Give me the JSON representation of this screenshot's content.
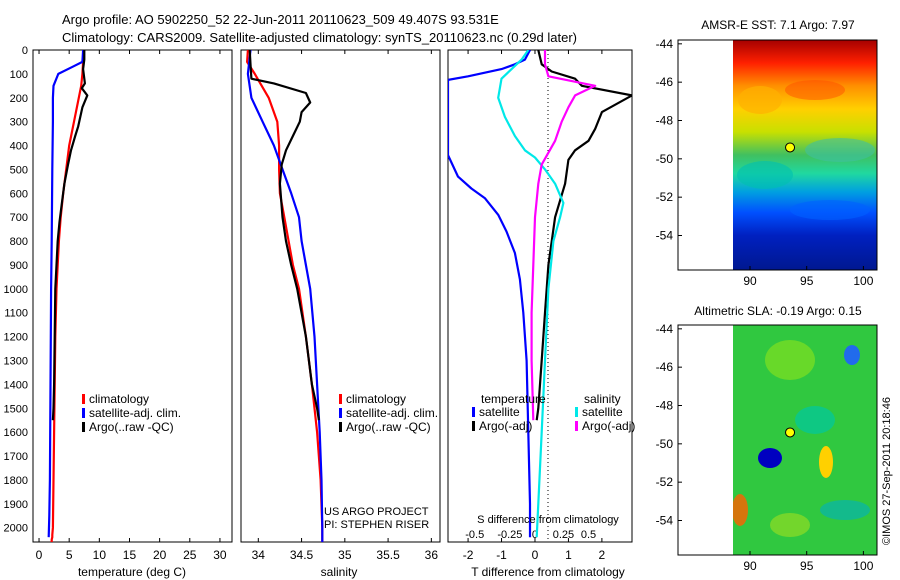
{
  "title_line1": "Argo profile: AO 5902250_52 22-Jun-2011 20110623_509 49.407S 93.531E",
  "title_line2": "Climatology: CARS2009. Satellite-adjusted climatology: synTS_20110623.nc (0.29d later)",
  "depth_ticks": [
    "0",
    "100",
    "200",
    "300",
    "400",
    "500",
    "600",
    "700",
    "800",
    "900",
    "1000",
    "1100",
    "1200",
    "1300",
    "1400",
    "1500",
    "1600",
    "1700",
    "1800",
    "1900",
    "2000"
  ],
  "depth_range": [
    0,
    2060
  ],
  "chart_data": [
    {
      "id": "temperature",
      "type": "line",
      "xlabel": "temperature (deg C)",
      "xlim": [
        -1,
        32
      ],
      "xticks": [
        {
          "v": 0,
          "l": "0"
        },
        {
          "v": 5,
          "l": "5"
        },
        {
          "v": 10,
          "l": "10"
        },
        {
          "v": 15,
          "l": "15"
        },
        {
          "v": 20,
          "l": "20"
        },
        {
          "v": 25,
          "l": "25"
        },
        {
          "v": 30,
          "l": "30"
        }
      ],
      "legend": {
        "items": [
          {
            "label": "climatology",
            "color": "#ff0000"
          },
          {
            "label": "satellite-adj. clim.",
            "color": "#0000ff"
          },
          {
            "label": "Argo(..raw -QC)",
            "color": "#000000"
          }
        ]
      },
      "series": [
        {
          "name": "climatology",
          "color": "#ff0000",
          "x": [
            7.3,
            7.3,
            7.2,
            7.0,
            5.8,
            5.0,
            4.5,
            4.0,
            3.6,
            3.3,
            3.1,
            2.9,
            2.7,
            2.6,
            2.5,
            2.4,
            2.3,
            2.2,
            2.2,
            2.1,
            2.1
          ],
          "y": [
            0,
            50,
            100,
            150,
            300,
            400,
            500,
            600,
            700,
            800,
            900,
            1000,
            1200,
            1400,
            1600,
            1800,
            2000,
            2030,
            2040,
            2050,
            2060
          ]
        },
        {
          "name": "satellite-adj. clim.",
          "color": "#0000ff",
          "x": [
            7.3,
            7.2,
            5.6,
            3.2,
            2.4,
            2.3,
            2.3,
            2.2,
            2.1,
            2.0,
            1.9,
            1.8,
            1.7,
            1.6
          ],
          "y": [
            0,
            50,
            70,
            100,
            150,
            200,
            300,
            500,
            800,
            1000,
            1400,
            1800,
            1950,
            2040
          ]
        },
        {
          "name": "Argo",
          "color": "#000000",
          "x": [
            7.5,
            7.5,
            7.3,
            7.6,
            7.1,
            8.0,
            7.2,
            6.5,
            6.0,
            5.3,
            4.8,
            4.2,
            3.8,
            3.4,
            3.1,
            2.9,
            2.7,
            2.6,
            2.5,
            2.4,
            2.3
          ],
          "y": [
            0,
            40,
            80,
            140,
            160,
            190,
            240,
            320,
            360,
            420,
            480,
            560,
            640,
            720,
            800,
            900,
            1000,
            1200,
            1400,
            1500,
            1550
          ]
        }
      ]
    },
    {
      "id": "salinity",
      "type": "line",
      "xlabel": "salinity",
      "xlim": [
        33.8,
        36.1
      ],
      "xticks": [
        {
          "v": 34,
          "l": "34"
        },
        {
          "v": 34.5,
          "l": "34.5"
        },
        {
          "v": 35,
          "l": "35"
        },
        {
          "v": 35.5,
          "l": "35.5"
        },
        {
          "v": 36,
          "l": "36"
        }
      ],
      "legend": {
        "items": [
          {
            "label": "climatology",
            "color": "#ff0000"
          },
          {
            "label": "satellite-adj. clim.",
            "color": "#0000ff"
          },
          {
            "label": "Argo(..raw -QC)",
            "color": "#000000"
          }
        ]
      },
      "annotation": [
        "US ARGO PROJECT",
        "PI: STEPHEN RISER"
      ],
      "series": [
        {
          "name": "climatology",
          "color": "#ff0000",
          "x": [
            33.88,
            33.87,
            33.96,
            34.12,
            34.22,
            34.24,
            34.24,
            34.25,
            34.3,
            34.35,
            34.4,
            34.47,
            34.55,
            34.62,
            34.68,
            34.72,
            34.74,
            34.74
          ],
          "y": [
            0,
            50,
            100,
            200,
            300,
            400,
            500,
            600,
            700,
            800,
            900,
            1000,
            1200,
            1400,
            1600,
            1800,
            2000,
            2060
          ]
        },
        {
          "name": "satellite-adj. clim.",
          "color": "#0000ff",
          "x": [
            33.91,
            33.88,
            33.92,
            34.05,
            34.18,
            34.28,
            34.38,
            34.47,
            34.5,
            34.55,
            34.6,
            34.65,
            34.68,
            34.71,
            34.73,
            34.74,
            34.74
          ],
          "y": [
            0,
            100,
            200,
            300,
            400,
            500,
            600,
            700,
            800,
            900,
            1000,
            1200,
            1400,
            1600,
            1800,
            2000,
            2060
          ]
        },
        {
          "name": "Argo",
          "color": "#000000",
          "x": [
            33.9,
            33.91,
            33.92,
            34.18,
            34.55,
            34.6,
            34.5,
            34.48,
            34.4,
            34.32,
            34.27,
            34.25,
            34.28,
            34.32,
            34.38,
            34.45,
            34.55,
            34.62,
            34.68,
            34.7
          ],
          "y": [
            0,
            60,
            120,
            140,
            180,
            220,
            260,
            300,
            360,
            420,
            480,
            560,
            700,
            800,
            900,
            1000,
            1200,
            1400,
            1500,
            1550
          ]
        }
      ]
    },
    {
      "id": "difference",
      "type": "line",
      "xlabel": "T difference from climatology",
      "xlabel2": "S difference from climatology",
      "xlim": [
        -2.6,
        2.9
      ],
      "xticks": [
        {
          "v": -2,
          "l": "-2"
        },
        {
          "v": -1,
          "l": "-1"
        },
        {
          "v": 0,
          "l": "0"
        },
        {
          "v": 1,
          "l": "1"
        },
        {
          "v": 2,
          "l": "2"
        }
      ],
      "sticks": [
        {
          "v": -1.8,
          "l": "-0.5"
        },
        {
          "v": -0.75,
          "l": "-0.25"
        },
        {
          "v": 0,
          "l": "0"
        },
        {
          "v": 0.85,
          "l": "0.25"
        },
        {
          "v": 1.6,
          "l": "0.5"
        }
      ],
      "legend": {
        "temperature": {
          "title": "temperature",
          "items": [
            {
              "label": "satellite",
              "color": "#0000ff"
            },
            {
              "label": "Argo(-adj)",
              "color": "#000000"
            }
          ]
        },
        "salinity": {
          "title": "salinity",
          "items": [
            {
              "label": "satellite",
              "color": "#00e8e8"
            },
            {
              "label": "Argo(-adj)",
              "color": "#ff00ff"
            }
          ]
        }
      },
      "series": [
        {
          "name": "T satellite",
          "color": "#0000ff",
          "x": [
            -0.15,
            -0.3,
            -0.6,
            -1.0,
            -1.5,
            -2.0,
            -2.6,
            -2.6,
            -2.3,
            -1.9,
            -1.5,
            -1.1,
            -0.85,
            -0.6,
            -0.45,
            -0.35,
            -0.25,
            -0.2,
            -0.15,
            -0.15
          ],
          "y": [
            0,
            40,
            60,
            80,
            95,
            110,
            125,
            440,
            530,
            580,
            620,
            690,
            760,
            850,
            960,
            1100,
            1300,
            1600,
            1900,
            2040
          ]
        },
        {
          "name": "T Argo(-adj)",
          "color": "#000000",
          "x": [
            0.1,
            0.2,
            0.5,
            1.2,
            1.4,
            2.9,
            2.0,
            1.8,
            1.6,
            1.2,
            1.0,
            0.9,
            0.6,
            0.4,
            0.3,
            0.2,
            0.1,
            0.05
          ],
          "y": [
            0,
            60,
            90,
            120,
            150,
            190,
            260,
            330,
            380,
            420,
            460,
            560,
            700,
            900,
            1100,
            1300,
            1500,
            1550
          ]
        },
        {
          "name": "S satellite",
          "color": "#00e8e8",
          "x": [
            -0.2,
            -0.4,
            -0.7,
            -1.0,
            -1.1,
            -0.9,
            -0.6,
            -0.3,
            0.0,
            0.3,
            0.6,
            0.85,
            0.75,
            0.55,
            0.4,
            0.3,
            0.2,
            0.1,
            0.05
          ],
          "y": [
            0,
            40,
            80,
            120,
            200,
            280,
            360,
            420,
            450,
            500,
            560,
            640,
            700,
            800,
            1000,
            1300,
            1600,
            1900,
            2040
          ]
        },
        {
          "name": "S Argo(-adj)",
          "color": "#ff00ff",
          "x": [
            0.3,
            0.3,
            0.4,
            1.8,
            1.2,
            1.0,
            0.8,
            0.6,
            0.2,
            0.1,
            0.0,
            -0.05,
            -0.1,
            -0.1,
            -0.05
          ],
          "y": [
            0,
            60,
            110,
            150,
            190,
            240,
            300,
            380,
            480,
            560,
            700,
            900,
            1100,
            1300,
            1550
          ]
        }
      ]
    },
    {
      "id": "sst_map",
      "type": "heatmap",
      "title": "AMSR-E SST: 7.1  Argo: 7.97",
      "xticks": [
        "90",
        "95",
        "100"
      ],
      "yticks": [
        "-44",
        "-46",
        "-48",
        "-50",
        "-52",
        "-54"
      ],
      "marker": {
        "lon": 93.531,
        "lat": -49.407
      }
    },
    {
      "id": "sla_map",
      "type": "heatmap",
      "title": "Altimetric SLA: -0.19  Argo: 0.15",
      "xticks": [
        "90",
        "95",
        "100"
      ],
      "yticks": [
        "-44",
        "-46",
        "-48",
        "-50",
        "-52",
        "-54"
      ],
      "marker": {
        "lon": 93.531,
        "lat": -49.407
      }
    }
  ],
  "credit": "©IMOS 27-Sep-2011 20:18:46"
}
